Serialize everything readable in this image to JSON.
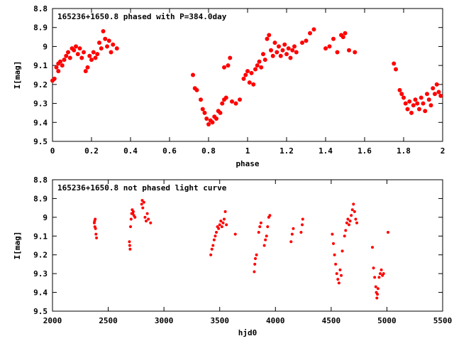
{
  "chart_data": [
    {
      "type": "scatter",
      "title": "165236+1650.8 phased with P=384.0day",
      "xlabel": "phase",
      "ylabel": "I[mag]",
      "xlim": [
        0,
        2
      ],
      "ylim": [
        8.8,
        9.5
      ],
      "y_inverted": true,
      "xticks": [
        0,
        0.2,
        0.4,
        0.6,
        0.8,
        1,
        1.2,
        1.4,
        1.6,
        1.8,
        2
      ],
      "xtick_labels": [
        "0",
        "0.2",
        "0.4",
        "0.6",
        "0.8",
        "1",
        "1.2",
        "1.4",
        "1.6",
        "1.8",
        "2"
      ],
      "yticks": [
        8.8,
        8.9,
        9.0,
        9.1,
        9.2,
        9.3,
        9.4,
        9.5
      ],
      "ytick_labels": [
        "8.8",
        "8.9",
        "9",
        "9.1",
        "9.2",
        "9.3",
        "9.4",
        "9.5"
      ],
      "grid": false,
      "marker_color": "#ff0000",
      "series": [
        {
          "points": [
            [
              0.0,
              9.18
            ],
            [
              0.01,
              9.17
            ],
            [
              0.02,
              9.11
            ],
            [
              0.03,
              9.13
            ],
            [
              0.03,
              9.09
            ],
            [
              0.04,
              9.08
            ],
            [
              0.05,
              9.1
            ],
            [
              0.06,
              9.07
            ],
            [
              0.07,
              9.05
            ],
            [
              0.08,
              9.03
            ],
            [
              0.09,
              9.06
            ],
            [
              0.1,
              9.01
            ],
            [
              0.11,
              9.02
            ],
            [
              0.12,
              9.0
            ],
            [
              0.13,
              9.04
            ],
            [
              0.14,
              9.01
            ],
            [
              0.15,
              9.06
            ],
            [
              0.16,
              9.03
            ],
            [
              0.17,
              9.13
            ],
            [
              0.18,
              9.11
            ],
            [
              0.19,
              9.05
            ],
            [
              0.2,
              9.07
            ],
            [
              0.21,
              9.03
            ],
            [
              0.22,
              9.06
            ],
            [
              0.23,
              9.04
            ],
            [
              0.24,
              8.98
            ],
            [
              0.25,
              9.01
            ],
            [
              0.26,
              8.92
            ],
            [
              0.27,
              8.96
            ],
            [
              0.28,
              9.0
            ],
            [
              0.29,
              8.97
            ],
            [
              0.3,
              9.03
            ],
            [
              0.31,
              8.99
            ],
            [
              0.33,
              9.01
            ],
            [
              0.72,
              9.15
            ],
            [
              0.73,
              9.22
            ],
            [
              0.74,
              9.23
            ],
            [
              0.76,
              9.28
            ],
            [
              0.77,
              9.33
            ],
            [
              0.78,
              9.35
            ],
            [
              0.79,
              9.38
            ],
            [
              0.8,
              9.41
            ],
            [
              0.81,
              9.39
            ],
            [
              0.82,
              9.4
            ],
            [
              0.83,
              9.37
            ],
            [
              0.84,
              9.38
            ],
            [
              0.85,
              9.34
            ],
            [
              0.86,
              9.35
            ],
            [
              0.87,
              9.3
            ],
            [
              0.88,
              9.28
            ],
            [
              0.88,
              9.11
            ],
            [
              0.89,
              9.27
            ],
            [
              0.9,
              9.1
            ],
            [
              0.91,
              9.06
            ],
            [
              0.92,
              9.29
            ],
            [
              0.94,
              9.3
            ],
            [
              0.96,
              9.28
            ],
            [
              0.98,
              9.17
            ],
            [
              0.99,
              9.15
            ],
            [
              1.0,
              9.13
            ],
            [
              1.01,
              9.19
            ],
            [
              1.02,
              9.14
            ],
            [
              1.03,
              9.2
            ],
            [
              1.04,
              9.12
            ],
            [
              1.05,
              9.1
            ],
            [
              1.06,
              9.08
            ],
            [
              1.07,
              9.11
            ],
            [
              1.08,
              9.04
            ],
            [
              1.09,
              9.07
            ],
            [
              1.1,
              8.96
            ],
            [
              1.11,
              8.94
            ],
            [
              1.12,
              9.02
            ],
            [
              1.13,
              9.05
            ],
            [
              1.14,
              8.98
            ],
            [
              1.15,
              9.03
            ],
            [
              1.16,
              9.0
            ],
            [
              1.17,
              9.05
            ],
            [
              1.18,
              9.02
            ],
            [
              1.19,
              8.99
            ],
            [
              1.2,
              9.04
            ],
            [
              1.21,
              9.01
            ],
            [
              1.22,
              9.06
            ],
            [
              1.23,
              9.02
            ],
            [
              1.24,
              9.0
            ],
            [
              1.25,
              9.03
            ],
            [
              1.28,
              8.98
            ],
            [
              1.3,
              8.97
            ],
            [
              1.32,
              8.93
            ],
            [
              1.34,
              8.91
            ],
            [
              1.4,
              9.01
            ],
            [
              1.42,
              9.0
            ],
            [
              1.44,
              8.96
            ],
            [
              1.46,
              9.03
            ],
            [
              1.48,
              8.94
            ],
            [
              1.49,
              8.95
            ],
            [
              1.5,
              8.93
            ],
            [
              1.52,
              9.02
            ],
            [
              1.55,
              9.03
            ],
            [
              1.75,
              9.09
            ],
            [
              1.76,
              9.12
            ],
            [
              1.78,
              9.23
            ],
            [
              1.79,
              9.25
            ],
            [
              1.8,
              9.27
            ],
            [
              1.81,
              9.3
            ],
            [
              1.82,
              9.33
            ],
            [
              1.83,
              9.29
            ],
            [
              1.84,
              9.35
            ],
            [
              1.85,
              9.31
            ],
            [
              1.86,
              9.28
            ],
            [
              1.87,
              9.3
            ],
            [
              1.88,
              9.33
            ],
            [
              1.89,
              9.27
            ],
            [
              1.9,
              9.3
            ],
            [
              1.91,
              9.34
            ],
            [
              1.92,
              9.25
            ],
            [
              1.93,
              9.28
            ],
            [
              1.94,
              9.31
            ],
            [
              1.95,
              9.22
            ],
            [
              1.96,
              9.25
            ],
            [
              1.97,
              9.2
            ],
            [
              1.98,
              9.24
            ],
            [
              1.99,
              9.26
            ]
          ]
        }
      ]
    },
    {
      "type": "scatter",
      "title": "165236+1650.8 not phased light curve",
      "xlabel": "hjd0",
      "ylabel": "I[mag]",
      "xlim": [
        2000,
        5500
      ],
      "ylim": [
        8.8,
        9.5
      ],
      "y_inverted": true,
      "xticks": [
        2000,
        2500,
        3000,
        3500,
        4000,
        4500,
        5000,
        5500
      ],
      "xtick_labels": [
        "2000",
        "2500",
        "3000",
        "3500",
        "4000",
        "4500",
        "5000",
        "5500"
      ],
      "yticks": [
        8.8,
        8.9,
        9.0,
        9.1,
        9.2,
        9.3,
        9.4,
        9.5
      ],
      "ytick_labels": [
        "8.8",
        "8.9",
        "9",
        "9.1",
        "9.2",
        "9.3",
        "9.4",
        "9.5"
      ],
      "grid": false,
      "marker_color": "#ff0000",
      "series": [
        {
          "points": [
            [
              2375,
              9.03
            ],
            [
              2378,
              9.02
            ],
            [
              2380,
              9.05
            ],
            [
              2383,
              9.01
            ],
            [
              2386,
              9.06
            ],
            [
              2390,
              9.09
            ],
            [
              2395,
              9.11
            ],
            [
              2690,
              9.13
            ],
            [
              2693,
              9.15
            ],
            [
              2696,
              9.17
            ],
            [
              2700,
              9.05
            ],
            [
              2705,
              9.01
            ],
            [
              2710,
              8.98
            ],
            [
              2715,
              8.96
            ],
            [
              2720,
              8.98
            ],
            [
              2725,
              8.97
            ],
            [
              2730,
              8.99
            ],
            [
              2740,
              9.0
            ],
            [
              2800,
              8.93
            ],
            [
              2805,
              8.91
            ],
            [
              2810,
              8.95
            ],
            [
              2820,
              8.92
            ],
            [
              2830,
              9.0
            ],
            [
              2840,
              9.02
            ],
            [
              2850,
              8.98
            ],
            [
              2860,
              9.01
            ],
            [
              2880,
              9.03
            ],
            [
              3420,
              9.2
            ],
            [
              3430,
              9.17
            ],
            [
              3440,
              9.15
            ],
            [
              3450,
              9.12
            ],
            [
              3460,
              9.1
            ],
            [
              3470,
              9.08
            ],
            [
              3480,
              9.05
            ],
            [
              3490,
              9.06
            ],
            [
              3500,
              9.04
            ],
            [
              3510,
              9.02
            ],
            [
              3520,
              9.05
            ],
            [
              3530,
              9.03
            ],
            [
              3540,
              9.01
            ],
            [
              3550,
              8.97
            ],
            [
              3560,
              9.04
            ],
            [
              3640,
              9.09
            ],
            [
              3810,
              9.29
            ],
            [
              3815,
              9.25
            ],
            [
              3820,
              9.22
            ],
            [
              3830,
              9.2
            ],
            [
              3850,
              9.08
            ],
            [
              3860,
              9.05
            ],
            [
              3870,
              9.03
            ],
            [
              3900,
              9.15
            ],
            [
              3910,
              9.12
            ],
            [
              3920,
              9.1
            ],
            [
              3930,
              9.05
            ],
            [
              3940,
              9.0
            ],
            [
              3950,
              8.99
            ],
            [
              4140,
              9.13
            ],
            [
              4150,
              9.09
            ],
            [
              4160,
              9.06
            ],
            [
              4230,
              9.08
            ],
            [
              4240,
              9.04
            ],
            [
              4245,
              9.01
            ],
            [
              4510,
              9.09
            ],
            [
              4520,
              9.14
            ],
            [
              4530,
              9.2
            ],
            [
              4540,
              9.25
            ],
            [
              4550,
              9.3
            ],
            [
              4560,
              9.33
            ],
            [
              4570,
              9.35
            ],
            [
              4580,
              9.28
            ],
            [
              4590,
              9.31
            ],
            [
              4600,
              9.18
            ],
            [
              4620,
              9.1
            ],
            [
              4630,
              9.07
            ],
            [
              4640,
              9.03
            ],
            [
              4650,
              9.01
            ],
            [
              4660,
              9.04
            ],
            [
              4670,
              9.02
            ],
            [
              4680,
              8.99
            ],
            [
              4690,
              8.96
            ],
            [
              4700,
              8.93
            ],
            [
              4710,
              8.97
            ],
            [
              4720,
              9.01
            ],
            [
              4730,
              9.03
            ],
            [
              4870,
              9.16
            ],
            [
              4880,
              9.27
            ],
            [
              4890,
              9.32
            ],
            [
              4900,
              9.37
            ],
            [
              4905,
              9.4
            ],
            [
              4910,
              9.43
            ],
            [
              4915,
              9.41
            ],
            [
              4920,
              9.38
            ],
            [
              4930,
              9.32
            ],
            [
              4940,
              9.3
            ],
            [
              4950,
              9.28
            ],
            [
              4960,
              9.31
            ],
            [
              4970,
              9.3
            ],
            [
              5010,
              9.08
            ]
          ]
        }
      ]
    }
  ]
}
